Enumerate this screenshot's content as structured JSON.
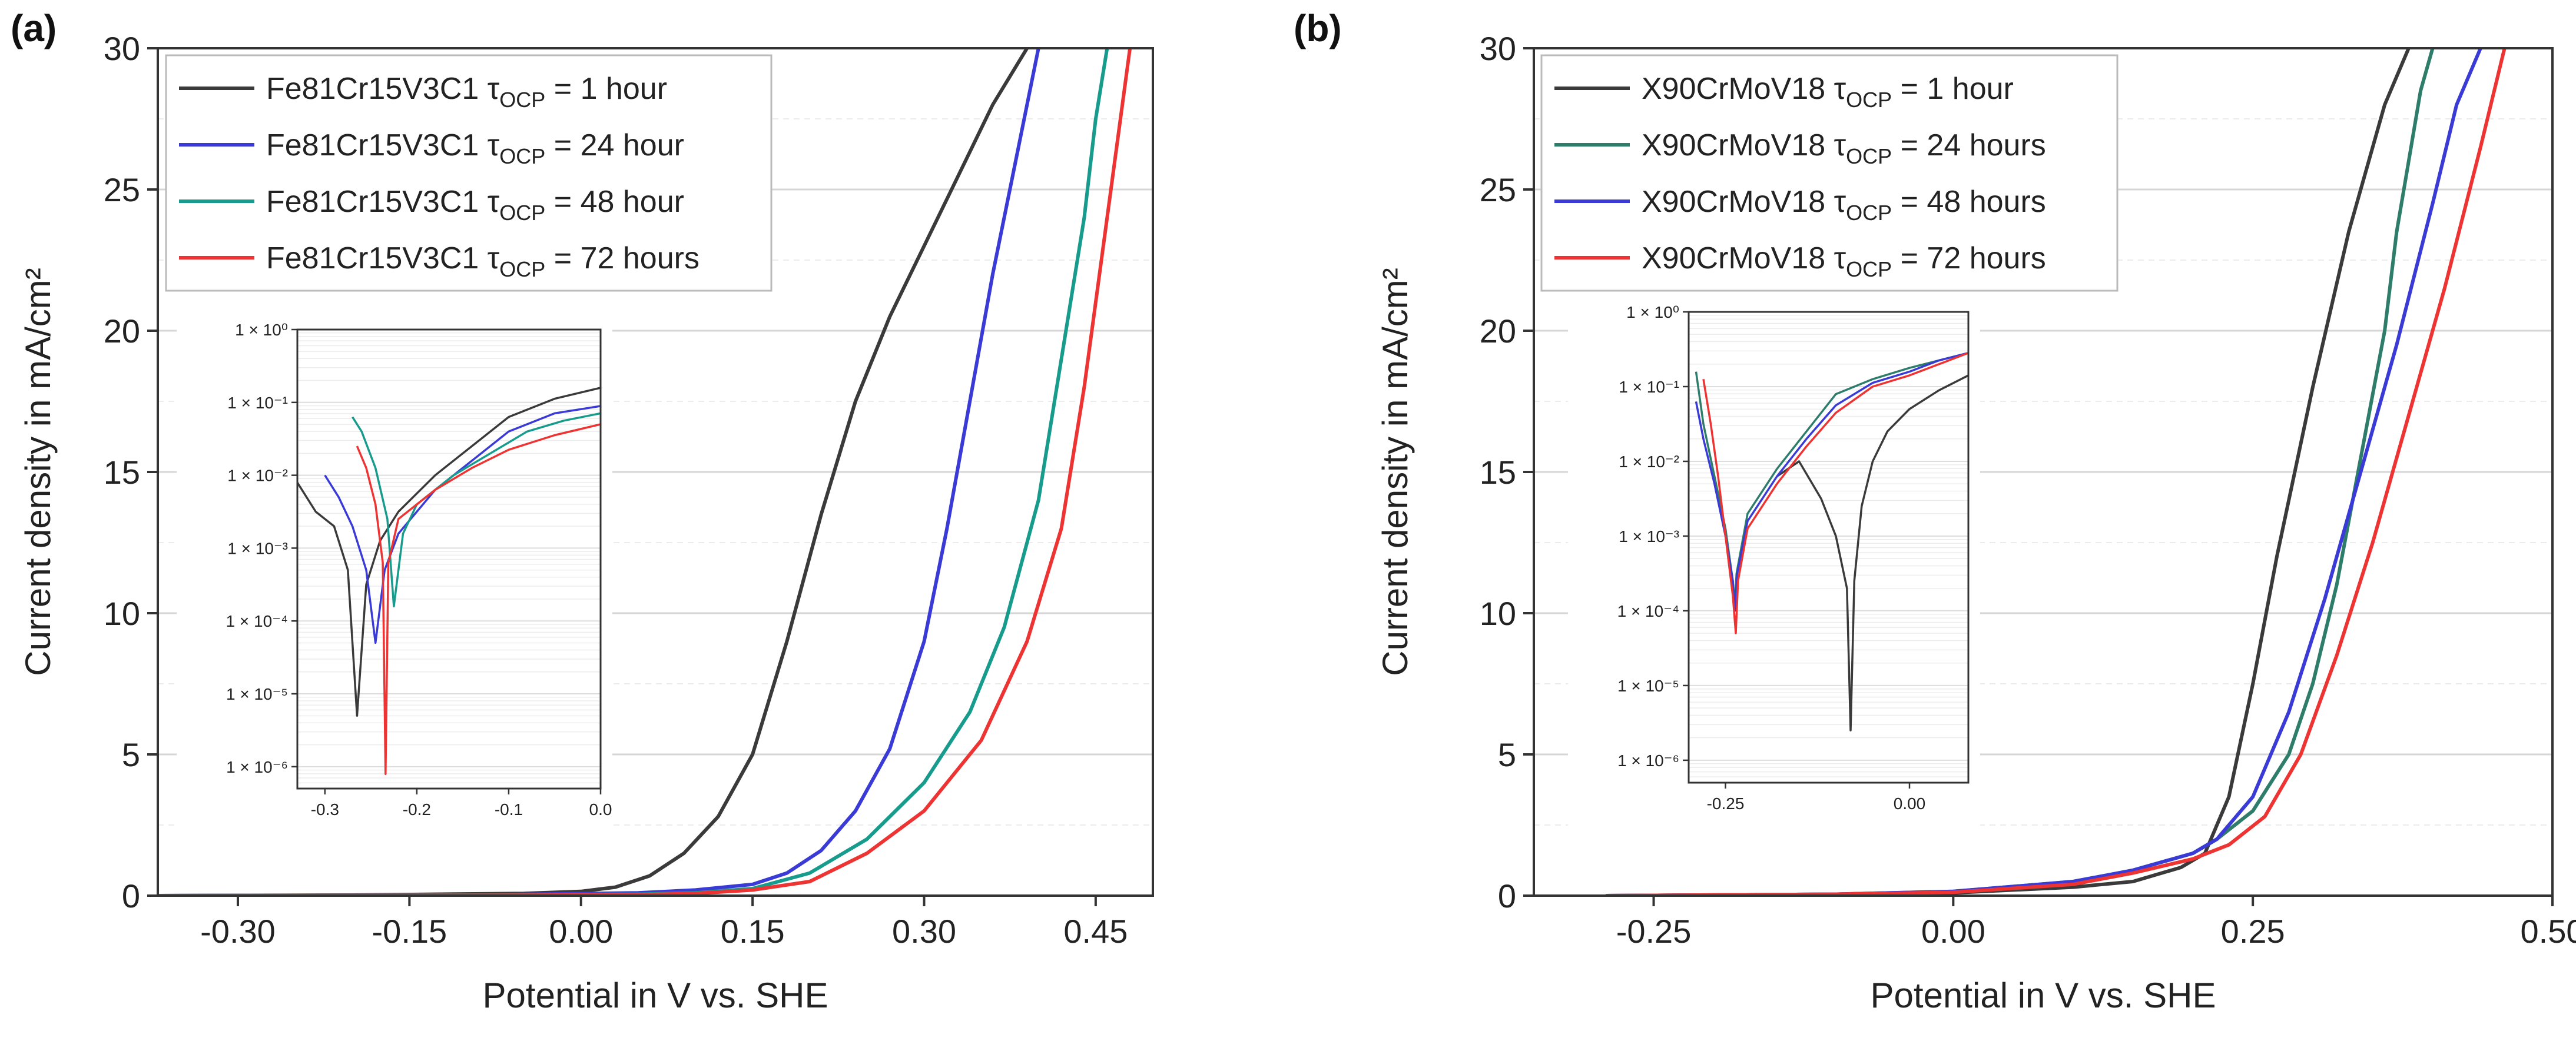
{
  "colors": {
    "black": "#3a3a3a",
    "blue": "#3a3ad6",
    "teal": "#169b8c",
    "green": "#2e7d6a",
    "red": "#ee3333",
    "grid": "#d6d6d6"
  },
  "chart_data": [
    {
      "type": "line",
      "panel_label": "(a)",
      "xlabel": "Potential in V vs. SHE",
      "ylabel": "Current density in mA/cm²",
      "xlim": [
        -0.37,
        0.5
      ],
      "ylim": [
        0,
        30
      ],
      "x_ticks": [
        -0.3,
        -0.15,
        0.0,
        0.15,
        0.3,
        0.45
      ],
      "x_tick_labels": [
        "-0.30",
        "-0.15",
        "0.00",
        "0.15",
        "0.30",
        "0.45"
      ],
      "y_ticks": [
        0,
        5,
        10,
        15,
        20,
        25,
        30
      ],
      "y_tick_labels": [
        "0",
        "5",
        "10",
        "15",
        "20",
        "25",
        "30"
      ],
      "grid": "horizontal",
      "legend_position": "top-left",
      "series": [
        {
          "name": "Fe81Cr15V3C1 τOCP = 1 hour",
          "legend_main": "Fe81Cr15V3C1 τ",
          "legend_sub": "OCP",
          "legend_tail": " = 1 hour",
          "color_key": "black",
          "x": [
            -0.37,
            -0.2,
            -0.05,
            0.0,
            0.03,
            0.06,
            0.09,
            0.12,
            0.15,
            0.18,
            0.21,
            0.24,
            0.27,
            0.3,
            0.33,
            0.36,
            0.39
          ],
          "y": [
            0,
            0.02,
            0.08,
            0.15,
            0.3,
            0.7,
            1.5,
            2.8,
            5.0,
            9.0,
            13.5,
            17.5,
            20.5,
            23.0,
            25.5,
            28.0,
            30
          ]
        },
        {
          "name": "Fe81Cr15V3C1 τOCP = 24 hour",
          "legend_main": "Fe81Cr15V3C1 τ",
          "legend_sub": "OCP",
          "legend_tail": " = 24 hour",
          "color_key": "blue",
          "x": [
            -0.37,
            -0.1,
            0.05,
            0.1,
            0.15,
            0.18,
            0.21,
            0.24,
            0.27,
            0.3,
            0.32,
            0.34,
            0.36,
            0.38,
            0.4
          ],
          "y": [
            0,
            0.02,
            0.1,
            0.2,
            0.4,
            0.8,
            1.6,
            3.0,
            5.2,
            9.0,
            13.0,
            17.5,
            22.0,
            26.0,
            30
          ]
        },
        {
          "name": "Fe81Cr15V3C1 τOCP = 48 hour",
          "legend_main": "Fe81Cr15V3C1 τ",
          "legend_sub": "OCP",
          "legend_tail": " = 48 hour",
          "color_key": "teal",
          "x": [
            -0.37,
            -0.1,
            0.05,
            0.1,
            0.15,
            0.2,
            0.25,
            0.3,
            0.34,
            0.37,
            0.4,
            0.42,
            0.44,
            0.45,
            0.46
          ],
          "y": [
            0,
            0.02,
            0.05,
            0.1,
            0.25,
            0.8,
            2.0,
            4.0,
            6.5,
            9.5,
            14.0,
            19.0,
            24.0,
            27.5,
            30
          ]
        },
        {
          "name": "Fe81Cr15V3C1 τOCP = 72 hours",
          "legend_main": "Fe81Cr15V3C1 τ",
          "legend_sub": "OCP",
          "legend_tail": " = 72 hours",
          "color_key": "red",
          "x": [
            -0.37,
            -0.1,
            0.05,
            0.1,
            0.15,
            0.2,
            0.25,
            0.3,
            0.35,
            0.39,
            0.42,
            0.44,
            0.46,
            0.48
          ],
          "y": [
            0,
            0.01,
            0.03,
            0.08,
            0.2,
            0.5,
            1.5,
            3.0,
            5.5,
            9.0,
            13.0,
            18.0,
            24.0,
            30
          ]
        }
      ],
      "inset": {
        "xlim": [
          -0.33,
          0.0
        ],
        "x_ticks": [
          -0.3,
          -0.2,
          -0.1,
          0.0
        ],
        "x_tick_labels": [
          "-0.3",
          "-0.2",
          "-0.1",
          "0.0"
        ],
        "y_log_range": [
          -6.3,
          0
        ],
        "y_ticks": [
          0,
          -1,
          -2,
          -3,
          -4,
          -5,
          -6
        ],
        "y_tick_labels": [
          "1 × 10⁰",
          "1 × 10⁻¹",
          "1 × 10⁻²",
          "1 × 10⁻³",
          "1 × 10⁻⁴",
          "1 × 10⁻⁵",
          "1 × 10⁻⁶"
        ],
        "series": [
          {
            "color_key": "black",
            "x": [
              -0.33,
              -0.31,
              -0.29,
              -0.275,
              -0.265,
              -0.255,
              -0.24,
              -0.22,
              -0.18,
              -0.14,
              -0.1,
              -0.05,
              0.0
            ],
            "y_log": [
              -2.1,
              -2.5,
              -2.7,
              -3.3,
              -5.3,
              -3.5,
              -2.9,
              -2.5,
              -2.0,
              -1.6,
              -1.2,
              -0.95,
              -0.8
            ]
          },
          {
            "color_key": "blue",
            "x": [
              -0.3,
              -0.285,
              -0.27,
              -0.255,
              -0.245,
              -0.235,
              -0.22,
              -0.18,
              -0.14,
              -0.1,
              -0.05,
              0.0
            ],
            "y_log": [
              -2.0,
              -2.3,
              -2.7,
              -3.3,
              -4.3,
              -3.3,
              -2.8,
              -2.2,
              -1.8,
              -1.4,
              -1.15,
              -1.05
            ]
          },
          {
            "color_key": "teal",
            "x": [
              -0.27,
              -0.26,
              -0.245,
              -0.232,
              -0.225,
              -0.215,
              -0.2,
              -0.16,
              -0.12,
              -0.08,
              -0.04,
              0.0
            ],
            "y_log": [
              -1.2,
              -1.4,
              -1.9,
              -2.6,
              -3.8,
              -2.8,
              -2.4,
              -2.0,
              -1.7,
              -1.4,
              -1.25,
              -1.15
            ]
          },
          {
            "color_key": "red",
            "x": [
              -0.265,
              -0.255,
              -0.245,
              -0.237,
              -0.234,
              -0.231,
              -0.22,
              -0.18,
              -0.14,
              -0.1,
              -0.05,
              0.0
            ],
            "y_log": [
              -1.6,
              -1.9,
              -2.4,
              -3.2,
              -6.1,
              -3.2,
              -2.6,
              -2.2,
              -1.9,
              -1.65,
              -1.45,
              -1.3
            ]
          }
        ]
      }
    },
    {
      "type": "line",
      "panel_label": "(b)",
      "xlabel": "Potential in V vs. SHE",
      "ylabel": "Current density in mA/cm²",
      "xlim": [
        -0.35,
        0.5
      ],
      "ylim": [
        0,
        30
      ],
      "x_ticks": [
        -0.25,
        0.0,
        0.25,
        0.5
      ],
      "x_tick_labels": [
        "-0.25",
        "0.00",
        "0.25",
        "0.50"
      ],
      "y_ticks": [
        0,
        5,
        10,
        15,
        20,
        25,
        30
      ],
      "y_tick_labels": [
        "0",
        "5",
        "10",
        "15",
        "20",
        "25",
        "30"
      ],
      "grid": "horizontal",
      "legend_position": "top-left",
      "series": [
        {
          "name": "X90CrMoV18 τOCP = 1 hour",
          "legend_main": "X90CrMoV18 τ",
          "legend_sub": "OCP",
          "legend_tail": " = 1 hour",
          "color_key": "black",
          "x": [
            -0.29,
            -0.1,
            0.0,
            0.1,
            0.15,
            0.19,
            0.21,
            0.23,
            0.25,
            0.27,
            0.3,
            0.33,
            0.36,
            0.38
          ],
          "y": [
            0,
            0.05,
            0.1,
            0.3,
            0.5,
            1.0,
            1.5,
            3.5,
            7.5,
            12.0,
            18.0,
            23.5,
            28.0,
            30
          ]
        },
        {
          "name": "X90CrMoV18 τOCP = 24 hours",
          "legend_main": "X90CrMoV18 τ",
          "legend_sub": "OCP",
          "legend_tail": " = 24 hours",
          "color_key": "green",
          "x": [
            -0.29,
            -0.1,
            0.0,
            0.1,
            0.15,
            0.2,
            0.22,
            0.25,
            0.28,
            0.3,
            0.32,
            0.34,
            0.36,
            0.37,
            0.38,
            0.39,
            0.4
          ],
          "y": [
            0,
            0.05,
            0.15,
            0.5,
            0.9,
            1.5,
            2.0,
            3.0,
            5.0,
            7.5,
            11.0,
            15.5,
            20.0,
            23.5,
            26.0,
            28.5,
            30
          ]
        },
        {
          "name": "X90CrMoV18 τOCP = 48 hours",
          "legend_main": "X90CrMoV18 τ",
          "legend_sub": "OCP",
          "legend_tail": " = 48 hours",
          "color_key": "blue",
          "x": [
            -0.29,
            -0.1,
            0.0,
            0.1,
            0.15,
            0.2,
            0.22,
            0.25,
            0.28,
            0.31,
            0.34,
            0.37,
            0.4,
            0.42,
            0.44
          ],
          "y": [
            0,
            0.05,
            0.15,
            0.5,
            0.9,
            1.5,
            2.0,
            3.5,
            6.5,
            10.5,
            15.0,
            19.5,
            24.5,
            28.0,
            30
          ]
        },
        {
          "name": "X90CrMoV18 τOCP = 72 hours",
          "legend_main": "X90CrMoV18 τ",
          "legend_sub": "OCP",
          "legend_tail": " = 72 hours",
          "color_key": "red",
          "x": [
            -0.29,
            -0.1,
            0.0,
            0.1,
            0.15,
            0.2,
            0.23,
            0.26,
            0.29,
            0.32,
            0.35,
            0.38,
            0.41,
            0.44,
            0.46
          ],
          "y": [
            0,
            0.05,
            0.12,
            0.4,
            0.8,
            1.3,
            1.8,
            2.8,
            5.0,
            8.5,
            12.5,
            17.0,
            21.5,
            26.5,
            30
          ]
        }
      ],
      "inset": {
        "xlim": [
          -0.3,
          0.08
        ],
        "x_ticks": [
          -0.25,
          0.0
        ],
        "x_tick_labels": [
          "-0.25",
          "0.00"
        ],
        "y_log_range": [
          -6.3,
          0
        ],
        "y_ticks": [
          0,
          -1,
          -2,
          -3,
          -4,
          -5,
          -6
        ],
        "y_tick_labels": [
          "1 × 10⁰",
          "1 × 10⁻¹",
          "1 × 10⁻²",
          "1 × 10⁻³",
          "1 × 10⁻⁴",
          "1 × 10⁻⁵",
          "1 × 10⁻⁶"
        ],
        "series": [
          {
            "color_key": "black",
            "x": [
              -0.18,
              -0.15,
              -0.12,
              -0.1,
              -0.085,
              -0.08,
              -0.075,
              -0.065,
              -0.05,
              -0.03,
              0.0,
              0.04,
              0.08
            ],
            "y_log": [
              -2.2,
              -2.0,
              -2.5,
              -3.0,
              -3.7,
              -5.6,
              -3.6,
              -2.6,
              -2.0,
              -1.6,
              -1.3,
              -1.05,
              -0.85
            ]
          },
          {
            "color_key": "green",
            "x": [
              -0.29,
              -0.28,
              -0.265,
              -0.25,
              -0.24,
              -0.238,
              -0.235,
              -0.22,
              -0.18,
              -0.14,
              -0.1,
              -0.05,
              0.0,
              0.04,
              0.08
            ],
            "y_log": [
              -0.8,
              -1.5,
              -2.2,
              -2.9,
              -3.6,
              -4.0,
              -3.5,
              -2.7,
              -2.1,
              -1.6,
              -1.1,
              -0.9,
              -0.75,
              -0.65,
              -0.55
            ]
          },
          {
            "color_key": "blue",
            "x": [
              -0.29,
              -0.28,
              -0.265,
              -0.25,
              -0.24,
              -0.237,
              -0.234,
              -0.22,
              -0.18,
              -0.14,
              -0.1,
              -0.05,
              0.0,
              0.04,
              0.08
            ],
            "y_log": [
              -1.2,
              -1.7,
              -2.3,
              -3.0,
              -3.6,
              -4.0,
              -3.5,
              -2.8,
              -2.2,
              -1.7,
              -1.25,
              -0.95,
              -0.8,
              -0.65,
              -0.55
            ]
          },
          {
            "color_key": "red",
            "x": [
              -0.28,
              -0.27,
              -0.26,
              -0.25,
              -0.24,
              -0.236,
              -0.233,
              -0.22,
              -0.18,
              -0.14,
              -0.1,
              -0.05,
              0.0,
              0.04,
              0.08
            ],
            "y_log": [
              -0.9,
              -1.5,
              -2.2,
              -3.0,
              -3.8,
              -4.3,
              -3.6,
              -2.9,
              -2.3,
              -1.8,
              -1.35,
              -1.0,
              -0.85,
              -0.7,
              -0.55
            ]
          }
        ]
      }
    }
  ]
}
